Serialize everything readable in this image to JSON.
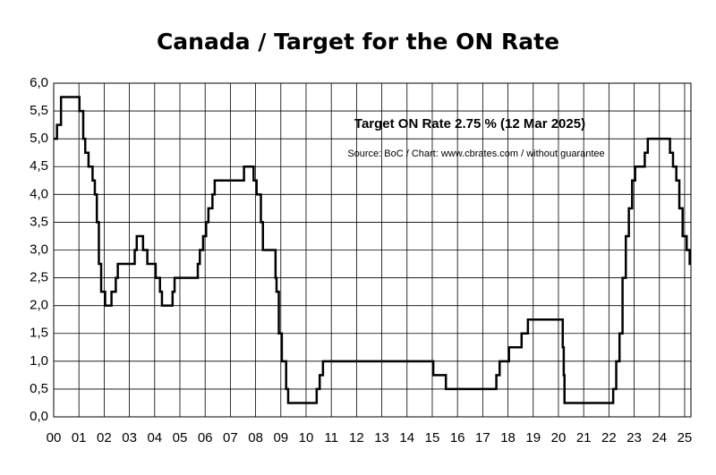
{
  "chart_data": {
    "type": "line",
    "step": "post",
    "title": "Canada / Target for the ON Rate",
    "annotations": [
      "Target ON Rate 2.75 % (12 Mar 2025)",
      "Source: BoC / Chart: www.cbrates.com / without guarantee"
    ],
    "color": "#000000",
    "grid": true,
    "xlim": [
      2000,
      2025.25
    ],
    "ylim": [
      0,
      6
    ],
    "xticks": [
      {
        "value": 2000,
        "label": "00"
      },
      {
        "value": 2001,
        "label": "01"
      },
      {
        "value": 2002,
        "label": "02"
      },
      {
        "value": 2003,
        "label": "03"
      },
      {
        "value": 2004,
        "label": "04"
      },
      {
        "value": 2005,
        "label": "05"
      },
      {
        "value": 2006,
        "label": "06"
      },
      {
        "value": 2007,
        "label": "07"
      },
      {
        "value": 2008,
        "label": "08"
      },
      {
        "value": 2009,
        "label": "09"
      },
      {
        "value": 2010,
        "label": "10"
      },
      {
        "value": 2011,
        "label": "11"
      },
      {
        "value": 2012,
        "label": "12"
      },
      {
        "value": 2013,
        "label": "13"
      },
      {
        "value": 2014,
        "label": "14"
      },
      {
        "value": 2015,
        "label": "15"
      },
      {
        "value": 2016,
        "label": "16"
      },
      {
        "value": 2017,
        "label": "17"
      },
      {
        "value": 2018,
        "label": "18"
      },
      {
        "value": 2019,
        "label": "19"
      },
      {
        "value": 2020,
        "label": "20"
      },
      {
        "value": 2021,
        "label": "21"
      },
      {
        "value": 2022,
        "label": "22"
      },
      {
        "value": 2023,
        "label": "23"
      },
      {
        "value": 2024,
        "label": "24"
      },
      {
        "value": 2025,
        "label": "25"
      }
    ],
    "yticks": [
      {
        "value": 0,
        "label": "0,0"
      },
      {
        "value": 0.5,
        "label": "0,5"
      },
      {
        "value": 1,
        "label": "1,0"
      },
      {
        "value": 1.5,
        "label": "1,5"
      },
      {
        "value": 2,
        "label": "2,0"
      },
      {
        "value": 2.5,
        "label": "2,5"
      },
      {
        "value": 3,
        "label": "3,0"
      },
      {
        "value": 3.5,
        "label": "3,5"
      },
      {
        "value": 4,
        "label": "4,0"
      },
      {
        "value": 4.5,
        "label": "4,5"
      },
      {
        "value": 5,
        "label": "5,0"
      },
      {
        "value": 5.5,
        "label": "5,5"
      },
      {
        "value": 6,
        "label": "6,0"
      }
    ],
    "x": [
      2000.0,
      2000.13,
      2000.29,
      2001.02,
      2001.17,
      2001.25,
      2001.38,
      2001.54,
      2001.63,
      2001.71,
      2001.79,
      2001.88,
      2002.04,
      2002.29,
      2002.46,
      2002.54,
      2003.21,
      2003.29,
      2003.54,
      2003.71,
      2004.04,
      2004.21,
      2004.29,
      2004.71,
      2004.79,
      2005.71,
      2005.79,
      2005.92,
      2006.04,
      2006.13,
      2006.29,
      2006.38,
      2007.54,
      2007.92,
      2008.04,
      2008.21,
      2008.29,
      2008.79,
      2008.83,
      2008.92,
      2009.04,
      2009.21,
      2009.29,
      2010.42,
      2010.54,
      2010.67,
      2015.04,
      2015.54,
      2017.54,
      2017.67,
      2018.04,
      2018.54,
      2018.79,
      2020.17,
      2020.21,
      2020.24,
      2022.17,
      2022.29,
      2022.42,
      2022.54,
      2022.67,
      2022.79,
      2022.92,
      2023.04,
      2023.42,
      2023.54,
      2024.42,
      2024.54,
      2024.67,
      2024.79,
      2024.92,
      2025.08,
      2025.2
    ],
    "values": [
      5.0,
      5.25,
      5.75,
      5.5,
      5.0,
      4.75,
      4.5,
      4.25,
      4.0,
      3.5,
      2.75,
      2.25,
      2.0,
      2.25,
      2.5,
      2.75,
      3.0,
      3.25,
      3.0,
      2.75,
      2.5,
      2.25,
      2.0,
      2.25,
      2.5,
      2.75,
      3.0,
      3.25,
      3.5,
      3.75,
      4.0,
      4.25,
      4.5,
      4.25,
      4.0,
      3.5,
      3.0,
      2.5,
      2.25,
      1.5,
      1.0,
      0.5,
      0.25,
      0.5,
      0.75,
      1.0,
      0.75,
      0.5,
      0.75,
      1.0,
      1.25,
      1.5,
      1.75,
      1.25,
      0.75,
      0.25,
      0.5,
      1.0,
      1.5,
      2.5,
      3.25,
      3.75,
      4.25,
      4.5,
      4.75,
      5.0,
      4.75,
      4.5,
      4.25,
      3.75,
      3.25,
      3.0,
      2.75
    ]
  }
}
